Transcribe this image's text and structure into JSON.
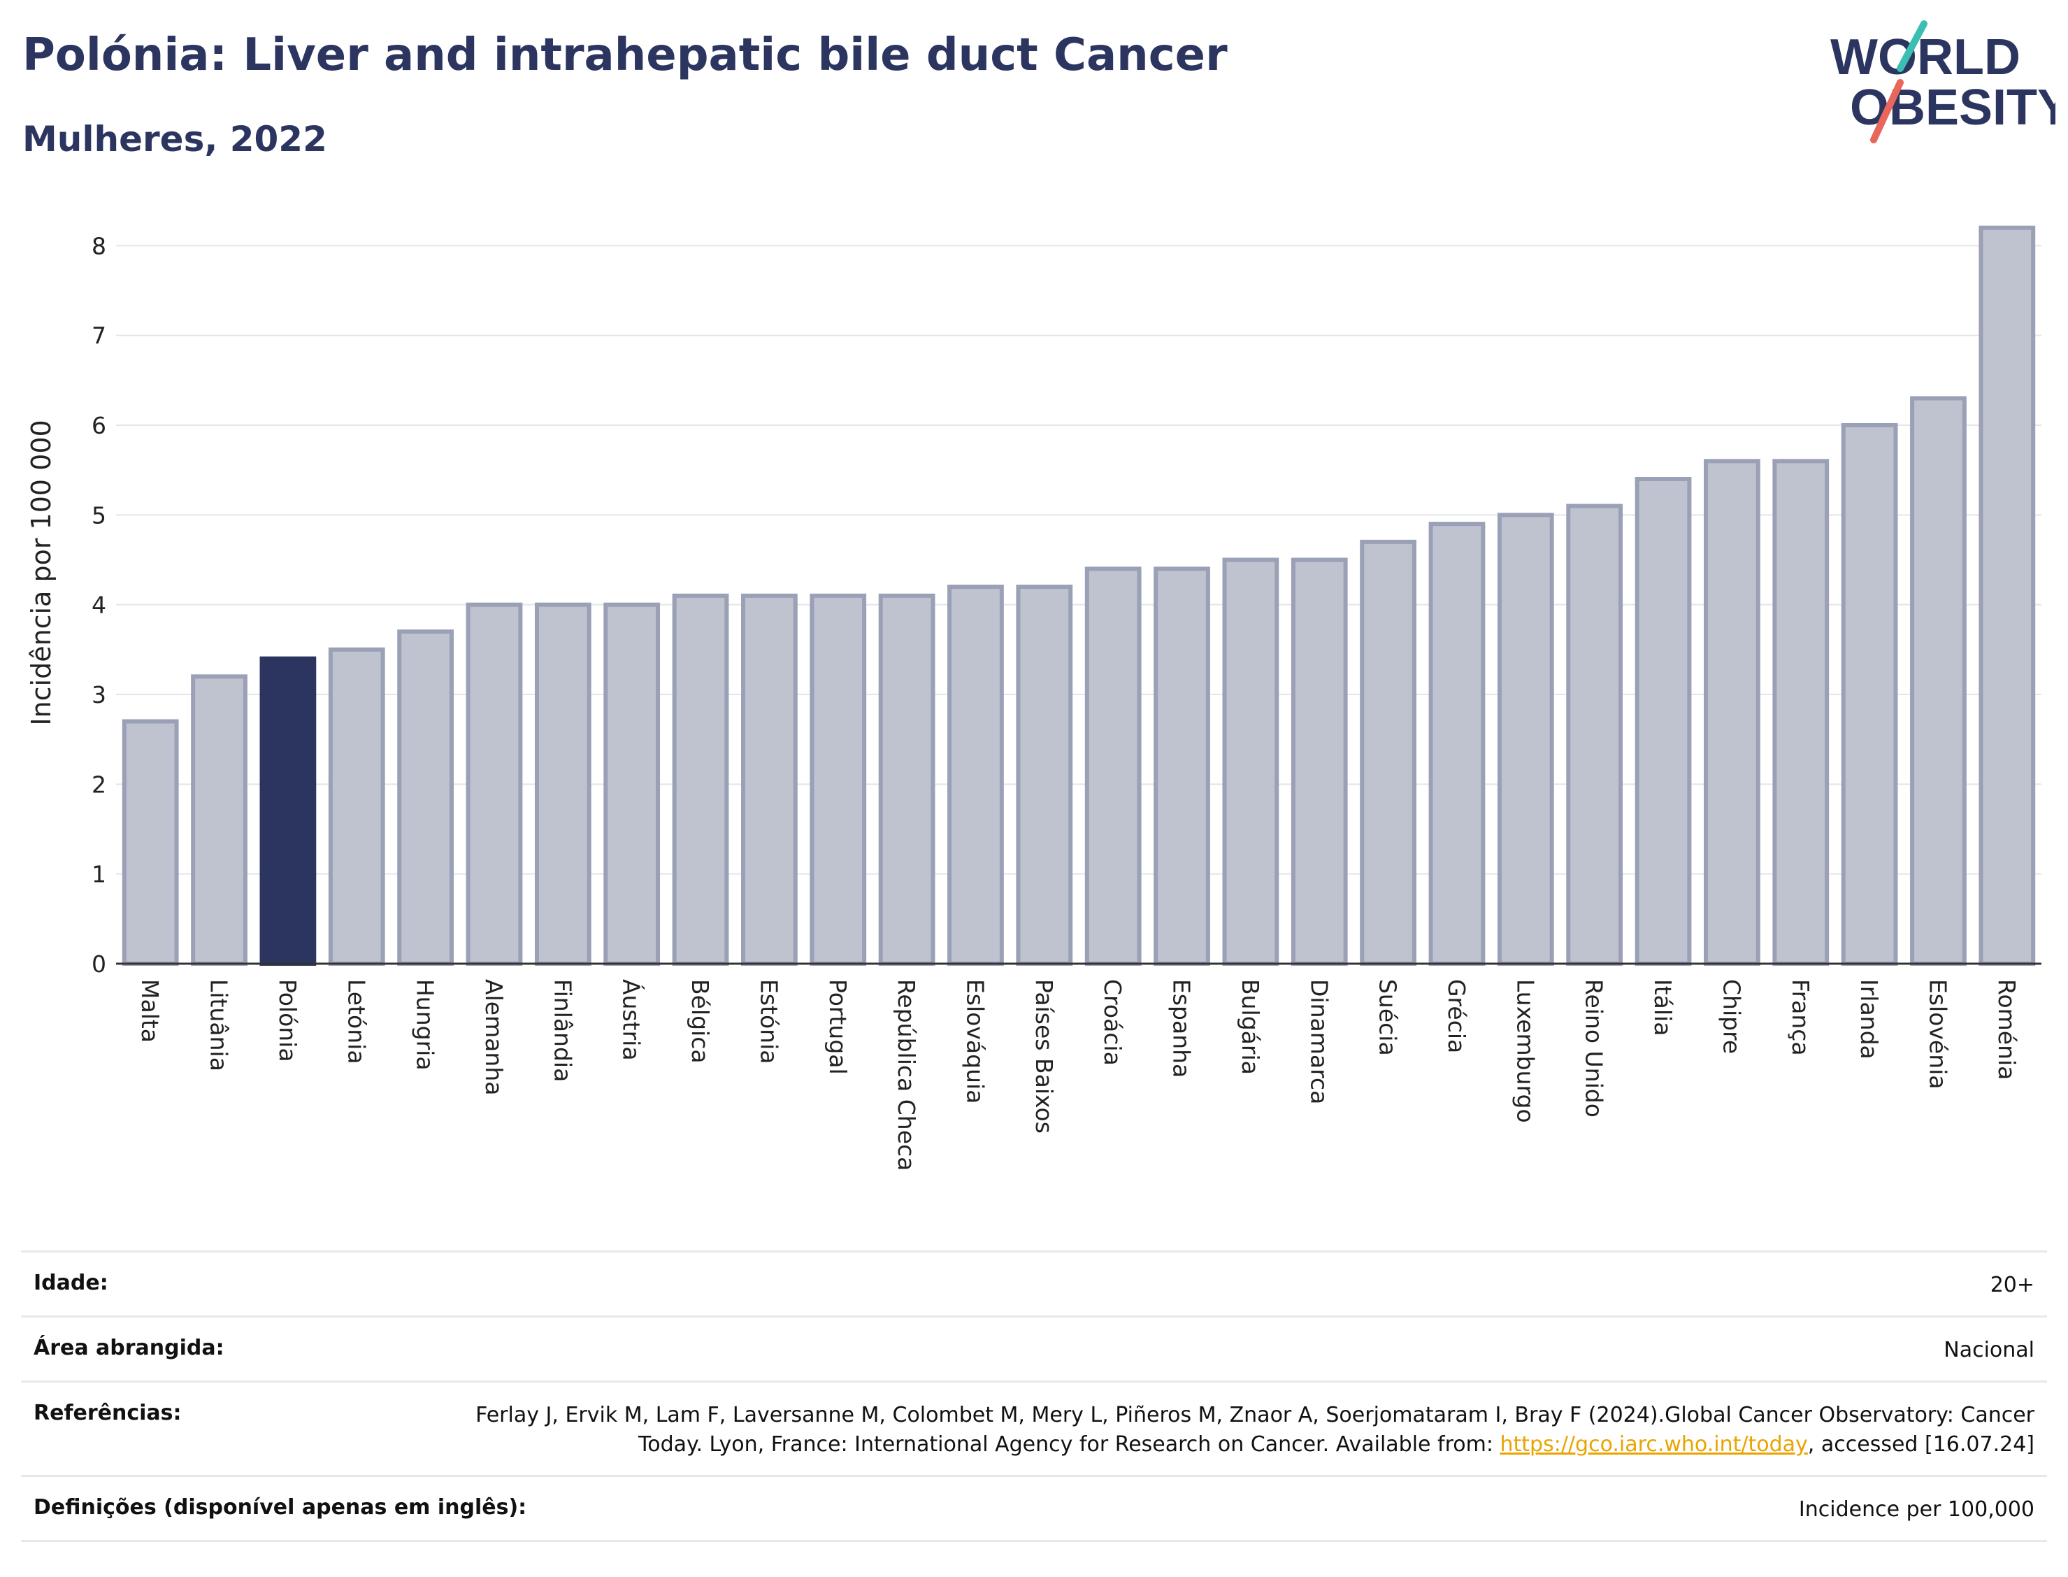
{
  "header": {
    "title": "Polónia: Liver and intrahepatic bile duct Cancer",
    "subtitle": "Mulheres, 2022"
  },
  "logo": {
    "line1": "WORLD",
    "line2": "OBESITY",
    "accent_teal": "#3bbfb2",
    "accent_coral": "#e8665a"
  },
  "chart_data": {
    "type": "bar",
    "title": "Polónia: Liver and intrahepatic bile duct Cancer",
    "subtitle": "Mulheres, 2022",
    "xlabel": "",
    "ylabel": "Incidência por 100 000",
    "ylim": [
      0,
      8.4
    ],
    "yticks": [
      0,
      1,
      2,
      3,
      4,
      5,
      6,
      7,
      8
    ],
    "grid": true,
    "highlight": "Polónia",
    "colors": {
      "bar": "#bfc2cf",
      "bar_border": "#9aa0b5",
      "highlight": "#2b3560"
    },
    "categories": [
      "Malta",
      "Lituânia",
      "Polónia",
      "Letónia",
      "Hungria",
      "Alemanha",
      "Finlândia",
      "Áustria",
      "Bélgica",
      "Estónia",
      "Portugal",
      "República Checa",
      "Eslováquia",
      "Países Baixos",
      "Croácia",
      "Espanha",
      "Bulgária",
      "Dinamarca",
      "Suécia",
      "Grécia",
      "Luxemburgo",
      "Reino Unido",
      "Itália",
      "Chipre",
      "França",
      "Irlanda",
      "Eslovénia",
      "Roménia"
    ],
    "values": [
      2.7,
      3.2,
      3.4,
      3.5,
      3.7,
      4.0,
      4.0,
      4.0,
      4.1,
      4.1,
      4.1,
      4.1,
      4.2,
      4.2,
      4.4,
      4.4,
      4.5,
      4.5,
      4.7,
      4.9,
      5.0,
      5.1,
      5.4,
      5.6,
      5.6,
      6.0,
      6.3,
      8.2
    ]
  },
  "footer": {
    "age_label": "Idade:",
    "age_value": "20+",
    "area_label": "Área abrangida:",
    "area_value": "Nacional",
    "ref_label": "Referências:",
    "ref_text_1": "Ferlay J, Ervik M, Lam F, Laversanne M, Colombet M, Mery L, Piñeros M, Znaor A, Soerjomataram I, Bray F (2024).Global Cancer Observatory: Cancer Today. Lyon, France: International Agency for Research on Cancer. Available from: ",
    "ref_link": "https://gco.iarc.who.int/today",
    "ref_text_2": ", accessed [16.07.24]",
    "def_label": "Definições (disponível apenas em inglês):",
    "def_value": "Incidence per 100,000"
  }
}
